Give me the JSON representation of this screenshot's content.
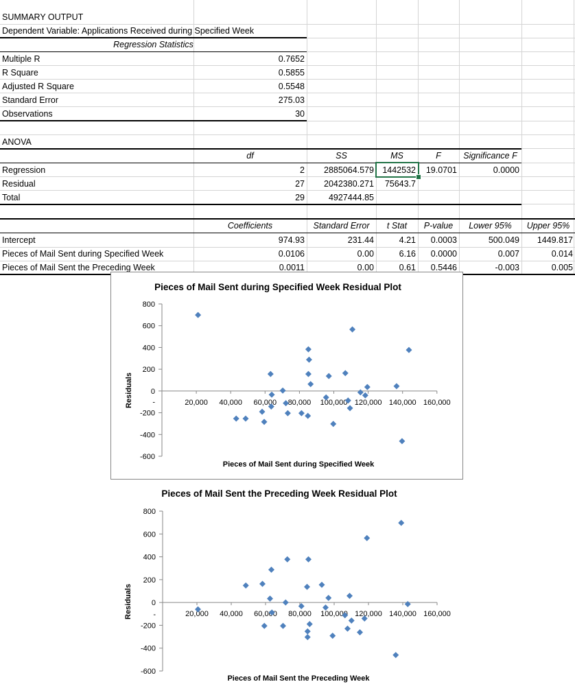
{
  "summary": {
    "title": "SUMMARY OUTPUT",
    "dependent_variable": "Dependent Variable: Applications Received during Specified Week",
    "regression_statistics_header": "Regression Statistics",
    "stats": [
      {
        "label": "Multiple R",
        "value": "0.7652"
      },
      {
        "label": "R Square",
        "value": "0.5855"
      },
      {
        "label": "Adjusted R Square",
        "value": "0.5548"
      },
      {
        "label": "Standard Error",
        "value": "275.03"
      },
      {
        "label": "Observations",
        "value": "30"
      }
    ]
  },
  "anova": {
    "title": "ANOVA",
    "headers": {
      "df": "df",
      "ss": "SS",
      "ms": "MS",
      "f": "F",
      "sig_f": "Significance F"
    },
    "rows": [
      {
        "label": "Regression",
        "df": "2",
        "ss": "2885064.579",
        "ms": "1442532",
        "f": "19.0701",
        "sig_f": "0.0000"
      },
      {
        "label": "Residual",
        "df": "27",
        "ss": "2042380.271",
        "ms": "75643.7",
        "f": "",
        "sig_f": ""
      },
      {
        "label": "Total",
        "df": "29",
        "ss": "4927444.85",
        "ms": "",
        "f": "",
        "sig_f": ""
      }
    ],
    "selected_cell": "1442532"
  },
  "coefficients": {
    "headers": {
      "coef": "Coefficients",
      "se": "Standard Error",
      "t": "t Stat",
      "p": "P-value",
      "lower": "Lower 95%",
      "upper": "Upper 95%"
    },
    "rows": [
      {
        "label": "Intercept",
        "coef": "974.93",
        "se": "231.44",
        "t": "4.21",
        "p": "0.0003",
        "lower": "500.049",
        "upper": "1449.817"
      },
      {
        "label": "Pieces of Mail Sent during Specified Week",
        "coef": "0.0106",
        "se": "0.00",
        "t": "6.16",
        "p": "0.0000",
        "lower": "0.007",
        "upper": "0.014"
      },
      {
        "label": "Pieces of Mail Sent the Preceding Week",
        "coef": "0.0011",
        "se": "0.00",
        "t": "0.61",
        "p": "0.5446",
        "lower": "-0.003",
        "upper": "0.005"
      }
    ]
  },
  "colors": {
    "marker": "#4f81bd",
    "axis": "#868686",
    "selection": "#217346",
    "gridline": "#d4d4d4"
  },
  "chart_data": [
    {
      "type": "scatter",
      "title": "Pieces of Mail Sent during Specified Week  Residual Plot",
      "xlabel": "Pieces of Mail Sent during Specified Week",
      "ylabel": "Residuals",
      "xlim": [
        0,
        160000
      ],
      "ylim": [
        -600,
        800
      ],
      "x_ticks": [
        "20,000",
        "40,000",
        "60,000",
        "80,000",
        "100,000",
        "120,000",
        "140,000",
        "160,000"
      ],
      "y_ticks": [
        "800",
        "600",
        "400",
        "200",
        "0",
        "-200",
        "-400",
        "-600"
      ],
      "grid": false,
      "legend": "none",
      "points": [
        [
          21000,
          698
        ],
        [
          63200,
          156
        ],
        [
          70300,
          4
        ],
        [
          63900,
          -34
        ],
        [
          63600,
          -143
        ],
        [
          72100,
          -112
        ],
        [
          73200,
          -204
        ],
        [
          58300,
          -191
        ],
        [
          43200,
          -254
        ],
        [
          48700,
          -254
        ],
        [
          59500,
          -284
        ],
        [
          110800,
          566
        ],
        [
          85200,
          383
        ],
        [
          143700,
          377
        ],
        [
          85600,
          288
        ],
        [
          85200,
          156
        ],
        [
          97100,
          137
        ],
        [
          106700,
          164
        ],
        [
          86500,
          63
        ],
        [
          119500,
          36
        ],
        [
          136500,
          44
        ],
        [
          115500,
          -13
        ],
        [
          118300,
          -40
        ],
        [
          95500,
          -59
        ],
        [
          108300,
          -88
        ],
        [
          109400,
          -158
        ],
        [
          81200,
          -204
        ],
        [
          84900,
          -229
        ],
        [
          99700,
          -303
        ],
        [
          139700,
          -461
        ]
      ]
    },
    {
      "type": "scatter",
      "title": "Pieces of Mail Sent the Preceding Week  Residual Plot",
      "xlabel": "Pieces of Mail Sent the Preceding Week",
      "ylabel": "Residuals",
      "xlim": [
        0,
        160000
      ],
      "ylim": [
        -600,
        800
      ],
      "x_ticks": [
        "20,000",
        "40,000",
        "60,000",
        "80,000",
        "100,000",
        "120,000",
        "140,000",
        "160,000"
      ],
      "y_ticks": [
        "800",
        "600",
        "400",
        "200",
        "0",
        "-200",
        "-400",
        "-600"
      ],
      "grid": false,
      "legend": "none",
      "points": [
        [
          20600,
          -60
        ],
        [
          48500,
          149
        ],
        [
          58200,
          163
        ],
        [
          63400,
          287
        ],
        [
          72700,
          378
        ],
        [
          85000,
          378
        ],
        [
          84200,
          137
        ],
        [
          62600,
          34
        ],
        [
          71700,
          0
        ],
        [
          80900,
          -32
        ],
        [
          63700,
          -88
        ],
        [
          59300,
          -205
        ],
        [
          70200,
          -205
        ],
        [
          85700,
          -189
        ],
        [
          84500,
          -253
        ],
        [
          84500,
          -303
        ],
        [
          139100,
          697
        ],
        [
          119100,
          564
        ],
        [
          92800,
          155
        ],
        [
          96700,
          40
        ],
        [
          109000,
          58
        ],
        [
          142900,
          -14
        ],
        [
          95000,
          -44
        ],
        [
          106300,
          -112
        ],
        [
          110100,
          -158
        ],
        [
          117700,
          -140
        ],
        [
          107800,
          -229
        ],
        [
          115000,
          -261
        ],
        [
          99100,
          -291
        ],
        [
          135900,
          -460
        ]
      ]
    }
  ]
}
